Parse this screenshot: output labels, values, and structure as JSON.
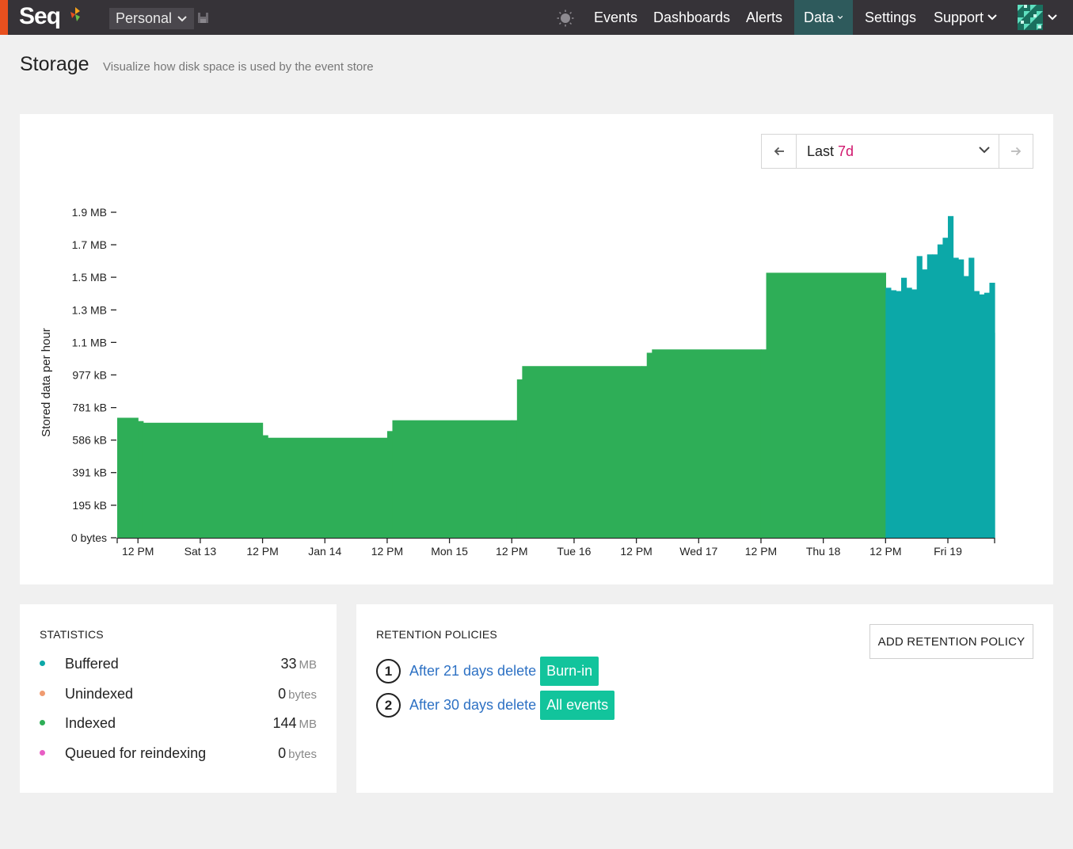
{
  "header": {
    "logo": "Seq",
    "workspace": "Personal",
    "nav": {
      "events": "Events",
      "dashboards": "Dashboards",
      "alerts": "Alerts",
      "data": "Data",
      "settings": "Settings",
      "support": "Support"
    },
    "active": "Data",
    "accent_color": "#e8501e",
    "active_color": "#2e5a5c"
  },
  "page": {
    "title": "Storage",
    "subtitle": "Visualize how disk space is used by the event store"
  },
  "range": {
    "prefix": "Last",
    "value": "7d"
  },
  "chart_data": {
    "type": "bar",
    "ylabel": "Stored data per hour",
    "xlabel": "",
    "y_ticks": [
      "0 bytes",
      "195 kB",
      "391 kB",
      "586 kB",
      "781 kB",
      "977 kB",
      "1.1 MB",
      "1.3 MB",
      "1.5 MB",
      "1.7 MB",
      "1.9 MB"
    ],
    "y_tick_values_kb": [
      0,
      195,
      391,
      586,
      781,
      977,
      1172,
      1367,
      1563,
      1758,
      1953
    ],
    "ylim_kb": [
      0,
      1953
    ],
    "x_ticks": [
      "12 PM",
      "Sat 13",
      "12 PM",
      "Jan 14",
      "12 PM",
      "Mon 15",
      "12 PM",
      "Tue 16",
      "12 PM",
      "Wed 17",
      "12 PM",
      "Thu 18",
      "12 PM",
      "Fri 19"
    ],
    "x_tick_hours": [
      24,
      36,
      48,
      60,
      72,
      84,
      96,
      108,
      120,
      132,
      144,
      156,
      168,
      180
    ],
    "x_range_hours": [
      20,
      189
    ],
    "series": [
      {
        "name": "Indexed",
        "color": "#2eae57",
        "points_kb": [
          [
            20,
            720
          ],
          [
            24,
            700
          ],
          [
            25,
            690
          ],
          [
            48,
            615
          ],
          [
            49,
            600
          ],
          [
            72,
            640
          ],
          [
            73,
            705
          ],
          [
            96,
            705
          ],
          [
            97,
            950
          ],
          [
            98,
            1030
          ],
          [
            121,
            1030
          ],
          [
            122,
            1110
          ],
          [
            123,
            1130
          ],
          [
            144,
            1130
          ],
          [
            145,
            1590
          ],
          [
            168,
            1590
          ]
        ]
      },
      {
        "name": "Buffered",
        "color": "#0ca8a8",
        "points_kb": [
          [
            168,
            1500
          ],
          [
            169,
            1485
          ],
          [
            170,
            1480
          ],
          [
            171,
            1560
          ],
          [
            172,
            1500
          ],
          [
            173,
            1490
          ],
          [
            174,
            1690
          ],
          [
            175,
            1610
          ],
          [
            176,
            1700
          ],
          [
            177,
            1700
          ],
          [
            178,
            1760
          ],
          [
            179,
            1800
          ],
          [
            180,
            1930
          ],
          [
            181,
            1680
          ],
          [
            182,
            1670
          ],
          [
            183,
            1570
          ],
          [
            184,
            1680
          ],
          [
            185,
            1480
          ],
          [
            186,
            1460
          ],
          [
            187,
            1470
          ],
          [
            188,
            1530
          ],
          [
            189,
            1230
          ]
        ]
      }
    ]
  },
  "statistics": {
    "title": "STATISTICS",
    "rows": [
      {
        "label": "Buffered",
        "value": "33",
        "unit": "MB",
        "color": "#0ca8a8"
      },
      {
        "label": "Unindexed",
        "value": "0",
        "unit": "bytes",
        "color": "#f09b70"
      },
      {
        "label": "Indexed",
        "value": "144",
        "unit": "MB",
        "color": "#2eae57"
      },
      {
        "label": "Queued for reindexing",
        "value": "0",
        "unit": "bytes",
        "color": "#e85ec4"
      }
    ]
  },
  "retention": {
    "title": "RETENTION POLICIES",
    "add_label": "ADD RETENTION POLICY",
    "policies": [
      {
        "number": "1",
        "text": "After 21 days delete",
        "tag": "Burn-in"
      },
      {
        "number": "2",
        "text": "After 30 days delete",
        "tag": "All events"
      }
    ]
  }
}
